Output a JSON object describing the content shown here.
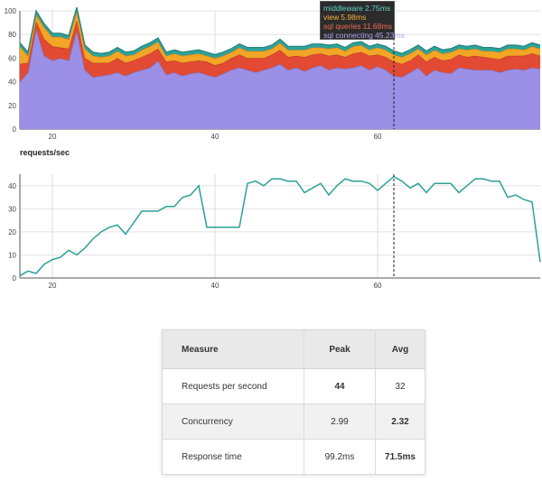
{
  "chart_data": [
    {
      "type": "area",
      "stacked": true,
      "xlim": [
        16,
        80
      ],
      "ylim": [
        0,
        100
      ],
      "x_ticks": [
        20,
        40,
        60
      ],
      "y_ticks": [
        0,
        20,
        40,
        60,
        80,
        100
      ],
      "grid": true,
      "hover_x": 62,
      "x": [
        16,
        17,
        18,
        19,
        20,
        21,
        22,
        23,
        24,
        25,
        26,
        27,
        28,
        29,
        30,
        31,
        32,
        33,
        34,
        35,
        36,
        37,
        38,
        39,
        40,
        41,
        42,
        43,
        44,
        45,
        46,
        47,
        48,
        49,
        50,
        51,
        52,
        53,
        54,
        55,
        56,
        57,
        58,
        59,
        60,
        61,
        62,
        63,
        64,
        65,
        66,
        67,
        68,
        69,
        70,
        71,
        72,
        73,
        74,
        75,
        76,
        77,
        78,
        79,
        80
      ],
      "series": [
        {
          "name": "sql connecting",
          "color": "#9b8fe6",
          "values": [
            40,
            48,
            85,
            62,
            58,
            60,
            58,
            84,
            50,
            44,
            45,
            46,
            48,
            45,
            48,
            50,
            52,
            58,
            46,
            48,
            45,
            47,
            48,
            46,
            44,
            47,
            50,
            52,
            50,
            48,
            50,
            52,
            55,
            50,
            52,
            49,
            52,
            54,
            50,
            52,
            51,
            52,
            54,
            50,
            53,
            50,
            45,
            44,
            48,
            52,
            45,
            50,
            48,
            47,
            52,
            51,
            50,
            50,
            50,
            48,
            50,
            51,
            50,
            52,
            51
          ]
        },
        {
          "name": "sql queries",
          "color": "#e34a33",
          "values": [
            15,
            8,
            6,
            14,
            12,
            9,
            10,
            8,
            10,
            12,
            11,
            10,
            12,
            11,
            10,
            11,
            12,
            10,
            11,
            10,
            11,
            10,
            10,
            11,
            10,
            9,
            10,
            11,
            10,
            12,
            10,
            11,
            12,
            11,
            10,
            12,
            11,
            10,
            12,
            11,
            10,
            12,
            11,
            12,
            10,
            11,
            12,
            11,
            10,
            11,
            12,
            11,
            10,
            12,
            11,
            10,
            12,
            11,
            10,
            11,
            12,
            11,
            12,
            12,
            11
          ]
        },
        {
          "name": "view",
          "color": "#f2a526",
          "values": [
            15,
            6,
            6,
            10,
            8,
            9,
            8,
            8,
            8,
            6,
            5,
            6,
            6,
            6,
            5,
            6,
            6,
            6,
            5,
            6,
            6,
            6,
            6,
            5,
            6,
            6,
            5,
            6,
            6,
            6,
            6,
            5,
            6,
            6,
            5,
            6,
            6,
            5,
            6,
            6,
            5,
            6,
            6,
            5,
            6,
            6,
            6,
            6,
            6,
            5,
            6,
            6,
            6,
            6,
            5,
            6,
            6,
            5,
            6,
            6,
            6,
            6,
            5,
            6,
            6
          ]
        },
        {
          "name": "middleware",
          "color": "#2da39a",
          "values": [
            3,
            3,
            3,
            3,
            3,
            3,
            3,
            3,
            3,
            3,
            3,
            3,
            3,
            3,
            3,
            3,
            3,
            3,
            3,
            3,
            3,
            3,
            3,
            3,
            3,
            3,
            3,
            3,
            3,
            3,
            3,
            3,
            3,
            3,
            3,
            3,
            3,
            3,
            3,
            3,
            3,
            3,
            3,
            3,
            3,
            3,
            3,
            3,
            3,
            3,
            3,
            3,
            3,
            3,
            3,
            3,
            3,
            3,
            3,
            3,
            3,
            3,
            3,
            3,
            3
          ]
        }
      ],
      "tooltip": [
        {
          "name": "middleware",
          "value": "2.75",
          "unit": "ms",
          "color": "#5fd3c8"
        },
        {
          "name": "view",
          "value": "5.98",
          "unit": "ms",
          "color": "#f5b340"
        },
        {
          "name": "sql queries",
          "value": "11.68",
          "unit": "ms",
          "color": "#f06a50"
        },
        {
          "name": "sql connecting",
          "value": "45.23",
          "unit": "ms",
          "color": "#b0a6f0"
        }
      ]
    },
    {
      "type": "line",
      "title": "requests/sec",
      "xlim": [
        16,
        80
      ],
      "ylim": [
        0,
        45
      ],
      "x_ticks": [
        20,
        40,
        60
      ],
      "y_ticks": [
        0,
        10,
        20,
        30,
        40
      ],
      "grid": true,
      "hover_x": 62,
      "color": "#2aa198",
      "x": [
        16,
        17,
        18,
        19,
        20,
        21,
        22,
        23,
        24,
        25,
        26,
        27,
        28,
        29,
        30,
        31,
        32,
        33,
        34,
        35,
        36,
        37,
        38,
        39,
        40,
        41,
        42,
        43,
        44,
        45,
        46,
        47,
        48,
        49,
        50,
        51,
        52,
        53,
        54,
        55,
        56,
        57,
        58,
        59,
        60,
        61,
        62,
        63,
        64,
        65,
        66,
        67,
        68,
        69,
        70,
        71,
        72,
        73,
        74,
        75,
        76,
        77,
        78,
        79,
        80
      ],
      "values": [
        1,
        3,
        2,
        6,
        8,
        9,
        12,
        10,
        13,
        17,
        20,
        22,
        23,
        19,
        24,
        29,
        29,
        29,
        31,
        31,
        35,
        36,
        40,
        22,
        22,
        22,
        22,
        22,
        41,
        42,
        40,
        43,
        43,
        42,
        42,
        37,
        39,
        41,
        36,
        40,
        43,
        42,
        42,
        41,
        38,
        41,
        44,
        42,
        39,
        41,
        37,
        41,
        41,
        41,
        37,
        40,
        43,
        43,
        42,
        42,
        35,
        36,
        34,
        33,
        7
      ]
    }
  ],
  "table": {
    "headers": [
      "Measure",
      "Peak",
      "Avg"
    ],
    "rows": [
      {
        "measure": "Requests per second",
        "peak": "44",
        "avg": "32",
        "bold": "peak"
      },
      {
        "measure": "Concurrency",
        "peak": "2.99",
        "avg": "2.32",
        "bold": "avg"
      },
      {
        "measure": "Response time",
        "peak": "99.2ms",
        "avg": "71.5ms",
        "bold": "avg"
      }
    ]
  }
}
